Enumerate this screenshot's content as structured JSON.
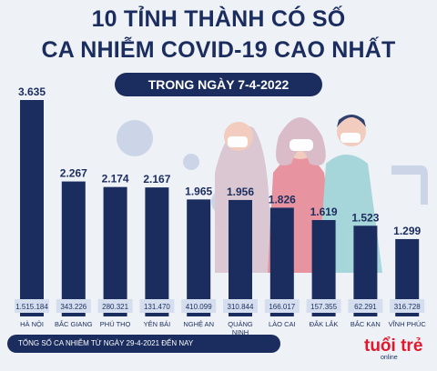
{
  "header": {
    "title_line1": "10 TỈNH THÀNH CÓ SỐ",
    "title_line2": "CA NHIỄM COVID-19 CAO NHẤT",
    "subtitle": "TRONG NGÀY 7-4-2022"
  },
  "footer": {
    "note": "TỔNG SỐ CA NHIỄM TỪ NGÀY 29-4-2021 ĐẾN NAY"
  },
  "logo": {
    "text_main": "tuổi trẻ",
    "text_small": "online"
  },
  "colors": {
    "bar": "#1b2d5e",
    "title": "#1b2d5e",
    "background": "#eef1f6",
    "total_box": "#d5deee"
  },
  "chart_data": {
    "type": "bar",
    "categories": [
      "HÀ NỘI",
      "BẮC GIANG",
      "PHÚ THỌ",
      "YÊN BÁI",
      "NGHỆ AN",
      "QUẢNG NINH",
      "LÀO CAI",
      "ĐẮK LẮK",
      "BẮC KẠN",
      "VĨNH PHÚC"
    ],
    "values": [
      3635,
      2267,
      2174,
      2167,
      1965,
      1956,
      1826,
      1619,
      1523,
      1299
    ],
    "value_labels": [
      "3.635",
      "2.267",
      "2.174",
      "2.167",
      "1.965",
      "1.956",
      "1.826",
      "1.619",
      "1.523",
      "1.299"
    ],
    "totals": [
      "1.515.184",
      "343.226",
      "280.321",
      "131.470",
      "410.099",
      "310.844",
      "166.017",
      "157.355",
      "62.291",
      "316.728"
    ],
    "ylim": [
      0,
      3635
    ]
  }
}
